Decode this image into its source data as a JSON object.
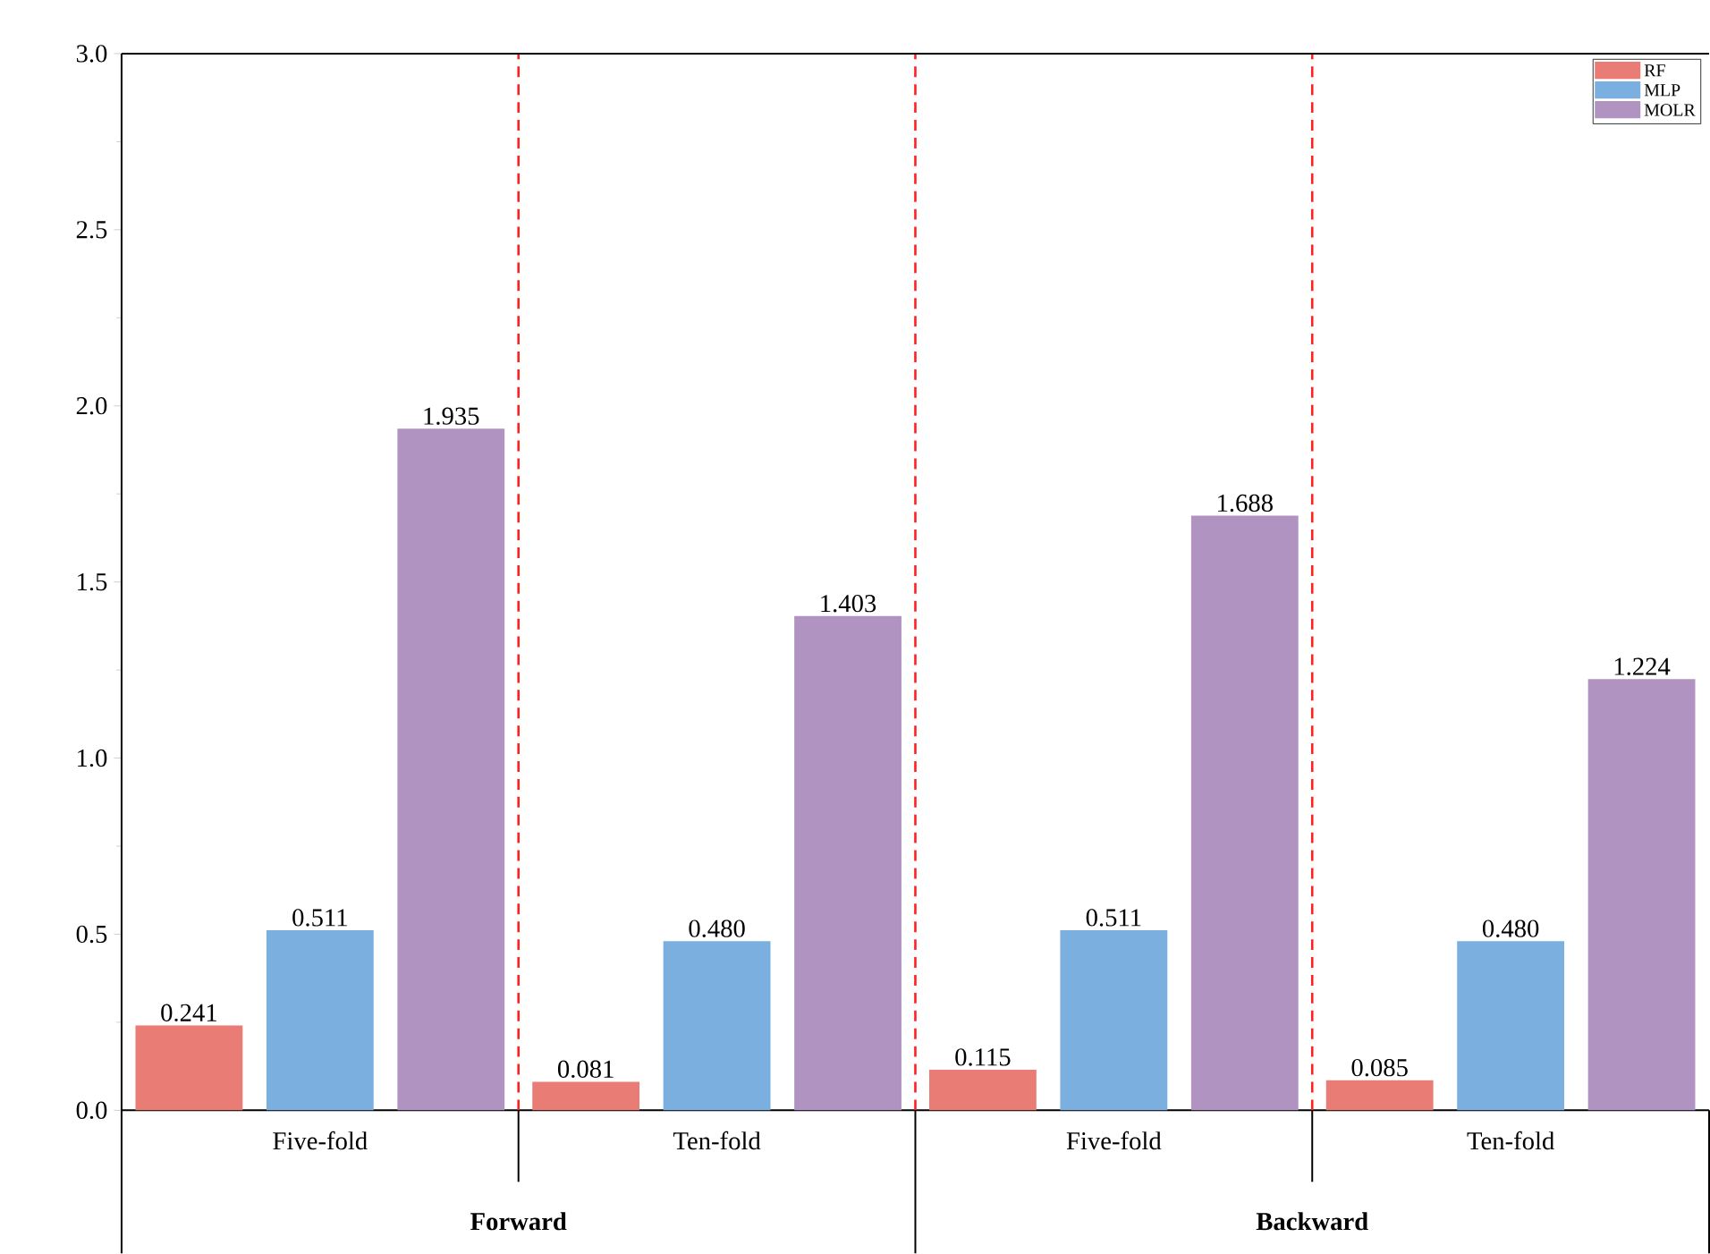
{
  "chart_data": {
    "type": "bar",
    "categories": [
      "Five-fold",
      "Ten-fold",
      "Five-fold",
      "Ten-fold"
    ],
    "series": [
      {
        "name": "RF",
        "color": "#e97d75",
        "values": [
          0.241,
          0.081,
          0.115,
          0.085
        ],
        "value_labels": [
          "0.241",
          "0.081",
          "0.115",
          "0.085"
        ]
      },
      {
        "name": "MLP",
        "color": "#7aafe0",
        "values": [
          0.511,
          0.48,
          0.511,
          0.48
        ],
        "value_labels": [
          "0.511",
          "0.480",
          "0.511",
          "0.480"
        ]
      },
      {
        "name": "MOLR",
        "color": "#b193c2",
        "values": [
          1.935,
          1.403,
          1.688,
          1.224
        ],
        "value_labels": [
          "1.935",
          "1.403",
          "1.688",
          "1.224"
        ]
      }
    ],
    "ylim": [
      0,
      3
    ],
    "yticks": [
      {
        "value": 0,
        "label": "0.0"
      },
      {
        "value": 0.5,
        "label": "0.5"
      },
      {
        "value": 1,
        "label": "1.0"
      },
      {
        "value": 1.5,
        "label": "1.5"
      },
      {
        "value": 2,
        "label": "2.0"
      },
      {
        "value": 2.5,
        "label": "2.5"
      },
      {
        "value": 3,
        "label": "3.0"
      }
    ],
    "annotations": [
      "Forward",
      "Backward"
    ],
    "legend": "top right",
    "grid": false
  }
}
